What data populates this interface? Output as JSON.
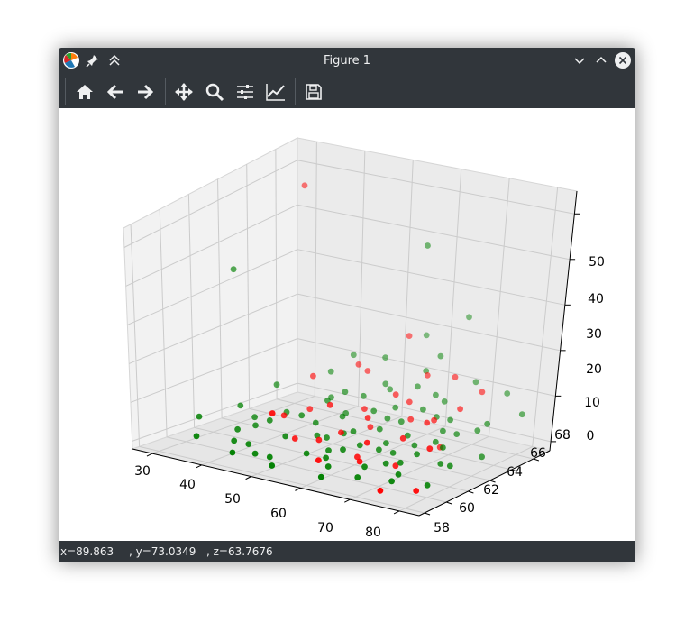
{
  "window": {
    "title": "Figure 1",
    "icons": [
      "app-icon",
      "pin-icon",
      "keep-above-icon",
      "minimize-icon",
      "maximize-icon",
      "close-icon"
    ]
  },
  "toolbar": {
    "tools": [
      "home-icon",
      "back-arrow-icon",
      "forward-arrow-icon",
      "pan-icon",
      "zoom-icon",
      "configure-subplots-icon",
      "edit-axis-icon",
      "save-icon"
    ]
  },
  "status": {
    "x_text": "x=89.863",
    "y_text": ", y=73.0349",
    "z_text": ", z=63.7676"
  },
  "colors": {
    "chrome": "#31363b",
    "series_red": "#ff0000",
    "series_green": "#008000"
  },
  "chart_data": {
    "type": "scatter",
    "projection": "3d",
    "title": "",
    "xlabel": "",
    "ylabel": "",
    "zlabel": "",
    "xlim": [
      26,
      84
    ],
    "ylim": [
      57.5,
      69.5
    ],
    "zlim": [
      -2,
      55
    ],
    "xticks": [
      "30",
      "40",
      "50",
      "60",
      "70",
      "80"
    ],
    "yticks": [
      "58",
      "60",
      "62",
      "64",
      "66",
      "68"
    ],
    "zticks": [
      "0",
      "10",
      "20",
      "30",
      "40",
      "50"
    ],
    "grid": true,
    "series": [
      {
        "color": "red",
        "points": [
          [
            32,
            68,
            48
          ],
          [
            55,
            61,
            4
          ],
          [
            60,
            59,
            3
          ],
          [
            70,
            62,
            7
          ],
          [
            75,
            58,
            1
          ],
          [
            73,
            64,
            3
          ],
          [
            48,
            60,
            10
          ],
          [
            52,
            63,
            9
          ],
          [
            65,
            61,
            6
          ],
          [
            70,
            64,
            8
          ],
          [
            80,
            59,
            1
          ],
          [
            45,
            62,
            6
          ],
          [
            58,
            66,
            9
          ],
          [
            62,
            67,
            13
          ],
          [
            55,
            68,
            19
          ],
          [
            40,
            66,
            9
          ],
          [
            47,
            67,
            12
          ],
          [
            66,
            60,
            3
          ],
          [
            72,
            66,
            9
          ],
          [
            78,
            61,
            8
          ],
          [
            54,
            65,
            6
          ],
          [
            60,
            63,
            8
          ],
          [
            50,
            61,
            3
          ],
          [
            68,
            67,
            14
          ],
          [
            58,
            64,
            4
          ],
          [
            49,
            67,
            11
          ],
          [
            64,
            65,
            6
          ],
          [
            74,
            67,
            12
          ],
          [
            57,
            62,
            5
          ],
          [
            61,
            66,
            8
          ],
          [
            63,
            61,
            2
          ],
          [
            69,
            65,
            7
          ],
          [
            71,
            61,
            2
          ],
          [
            45,
            64,
            5
          ]
        ]
      },
      {
        "color": "green",
        "points": [
          [
            26,
            65,
            32
          ],
          [
            58,
            68,
            40
          ],
          [
            65,
            69,
            24
          ],
          [
            30,
            61,
            3
          ],
          [
            35,
            59,
            2
          ],
          [
            40,
            60,
            1
          ],
          [
            42,
            62,
            4
          ],
          [
            45,
            58,
            2
          ],
          [
            48,
            61,
            3
          ],
          [
            50,
            59,
            1
          ],
          [
            52,
            62,
            3
          ],
          [
            55,
            60,
            2
          ],
          [
            57,
            63,
            4
          ],
          [
            60,
            61,
            3
          ],
          [
            62,
            59,
            2
          ],
          [
            65,
            62,
            3
          ],
          [
            67,
            60,
            2
          ],
          [
            70,
            63,
            4
          ],
          [
            72,
            61,
            3
          ],
          [
            75,
            59,
            2
          ],
          [
            78,
            62,
            3
          ],
          [
            80,
            60,
            1
          ],
          [
            44,
            66,
            5
          ],
          [
            50,
            65,
            4
          ],
          [
            54,
            67,
            8
          ],
          [
            58,
            66,
            6
          ],
          [
            62,
            65,
            5
          ],
          [
            66,
            67,
            8
          ],
          [
            70,
            66,
            6
          ],
          [
            74,
            65,
            5
          ],
          [
            78,
            66,
            7
          ],
          [
            82,
            64,
            3
          ],
          [
            36,
            63,
            2
          ],
          [
            40,
            64,
            3
          ],
          [
            46,
            63,
            5
          ],
          [
            52,
            64,
            5
          ],
          [
            56,
            65,
            6
          ],
          [
            60,
            64,
            4
          ],
          [
            64,
            63,
            3
          ],
          [
            68,
            62,
            3
          ],
          [
            72,
            64,
            4
          ],
          [
            76,
            63,
            5
          ],
          [
            80,
            62,
            3
          ],
          [
            38,
            61,
            2
          ],
          [
            43,
            60,
            1
          ],
          [
            47,
            59,
            1
          ],
          [
            53,
            58,
            1
          ],
          [
            59,
            60,
            2
          ],
          [
            63,
            58,
            1
          ],
          [
            68,
            59,
            1
          ],
          [
            74,
            60,
            2
          ],
          [
            35,
            65,
            7
          ],
          [
            41,
            67,
            9
          ],
          [
            47,
            66,
            7
          ],
          [
            53,
            67,
            9
          ],
          [
            59,
            68,
            12
          ],
          [
            64,
            66,
            7
          ],
          [
            70,
            68,
            12
          ],
          [
            77,
            68,
            11
          ],
          [
            83,
            67,
            9
          ],
          [
            62,
            68,
            16
          ],
          [
            56,
            69,
            18
          ],
          [
            50,
            68,
            13
          ],
          [
            43,
            68,
            12
          ],
          [
            66,
            64,
            4
          ],
          [
            55,
            63,
            3
          ],
          [
            49,
            63,
            4
          ],
          [
            61,
            62,
            3
          ],
          [
            57,
            61,
            2
          ],
          [
            71,
            65,
            5
          ],
          [
            60,
            67,
            10
          ],
          [
            39,
            62,
            2
          ],
          [
            73,
            62,
            4
          ],
          [
            69,
            61,
            2
          ],
          [
            46,
            65,
            6
          ],
          [
            51,
            66,
            7
          ],
          [
            33,
            63,
            4
          ],
          [
            76,
            66,
            5
          ],
          [
            64,
            67,
            9
          ],
          [
            54,
            62,
            3
          ],
          [
            67,
            66,
            6
          ],
          [
            59,
            65,
            5
          ]
        ]
      }
    ]
  }
}
